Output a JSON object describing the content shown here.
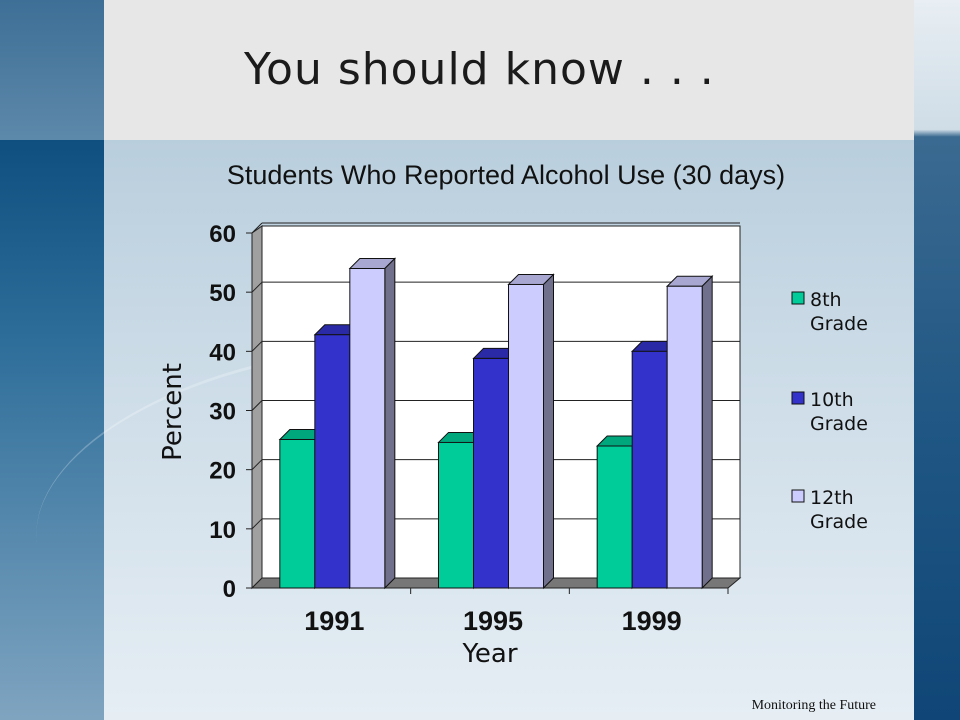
{
  "slide": {
    "title": "You should know . . .",
    "source": "Monitoring the Future"
  },
  "chart_data": {
    "type": "bar",
    "title": "Students Who Reported Alcohol Use (30 days)",
    "xlabel": "Year",
    "ylabel": "Percent",
    "categories": [
      "1991",
      "1995",
      "1999"
    ],
    "ylim": [
      0,
      60
    ],
    "yticks": [
      "0",
      "10",
      "20",
      "30",
      "40",
      "50",
      "60"
    ],
    "grid": true,
    "legend_position": "right",
    "series": [
      {
        "name": "8th Grade",
        "legend_lines": [
          "8th",
          "Grade"
        ],
        "values": [
          25.1,
          24.6,
          24.0
        ],
        "color": "#00cc99"
      },
      {
        "name": "10th Grade",
        "legend_lines": [
          "10th",
          "Grade"
        ],
        "values": [
          42.8,
          38.8,
          40.0
        ],
        "color": "#3333cc"
      },
      {
        "name": "12th Grade",
        "legend_lines": [
          "12th",
          "Grade"
        ],
        "values": [
          54.0,
          51.3,
          51.0
        ],
        "color": "#ccccff"
      }
    ]
  }
}
